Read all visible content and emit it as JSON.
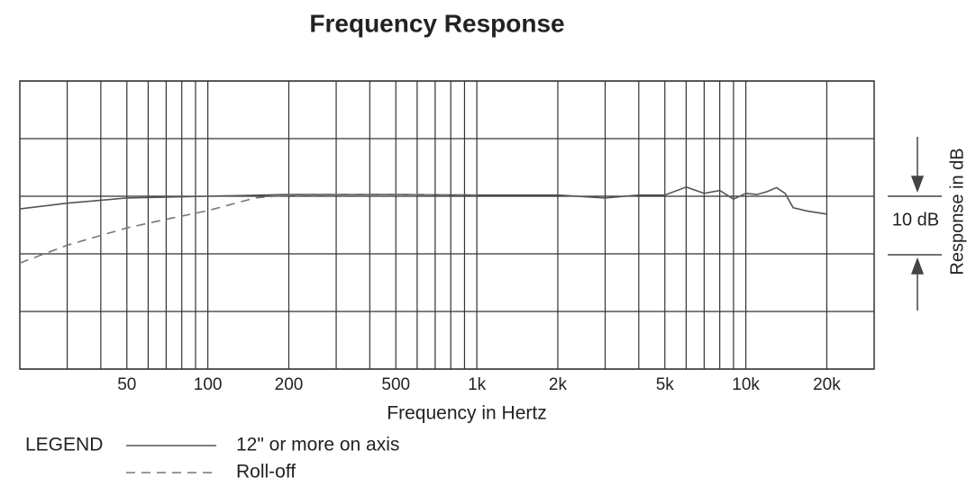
{
  "chart_data": {
    "type": "line",
    "title": "Frequency Response",
    "x_label": "Frequency in Hertz",
    "y_label": "Response in dB",
    "annotation": "10 dB",
    "legend_title": "LEGEND",
    "log_x": true,
    "grid": true,
    "xlim": [
      20,
      30000
    ],
    "xticks": [
      50,
      100,
      200,
      500,
      {
        "value": 1000,
        "label": "1k"
      },
      {
        "value": 2000,
        "label": "2k"
      },
      {
        "value": 5000,
        "label": "5k"
      },
      {
        "value": 10000,
        "label": "10k"
      },
      {
        "value": 20000,
        "label": "20k"
      }
    ],
    "xminor_ticks": [
      30,
      40,
      60,
      70,
      80,
      90,
      300,
      400,
      600,
      700,
      800,
      900,
      3000,
      4000,
      6000,
      7000,
      8000,
      9000
    ],
    "ylim": [
      -30,
      20
    ],
    "yticks": [
      -30,
      -20,
      -10,
      0,
      10,
      20
    ],
    "series": [
      {
        "name": "12\" or more on axis",
        "color": "#555555",
        "dash": false,
        "x": [
          20,
          30,
          50,
          100,
          200,
          500,
          1000,
          2000,
          3000,
          4000,
          5000,
          6000,
          7000,
          8000,
          9000,
          10000,
          11000,
          12000,
          13000,
          14000,
          15000,
          17000,
          20000
        ],
        "values": [
          -2.2,
          -1.2,
          -0.3,
          0,
          0.3,
          0.3,
          0.2,
          0.2,
          -0.3,
          0.2,
          0.2,
          1.6,
          0.5,
          1.0,
          -0.5,
          0.5,
          0.3,
          0.8,
          1.5,
          0.5,
          -2,
          -2.6,
          -3.1
        ]
      },
      {
        "name": "Roll-off",
        "color": "#777777",
        "dash": true,
        "x": [
          20,
          30,
          50,
          70,
          100,
          150,
          200,
          500,
          1000
        ],
        "values": [
          -11.6,
          -8.5,
          -5.5,
          -4,
          -2.5,
          -0.3,
          0.2,
          0.3,
          0.2
        ]
      }
    ]
  }
}
